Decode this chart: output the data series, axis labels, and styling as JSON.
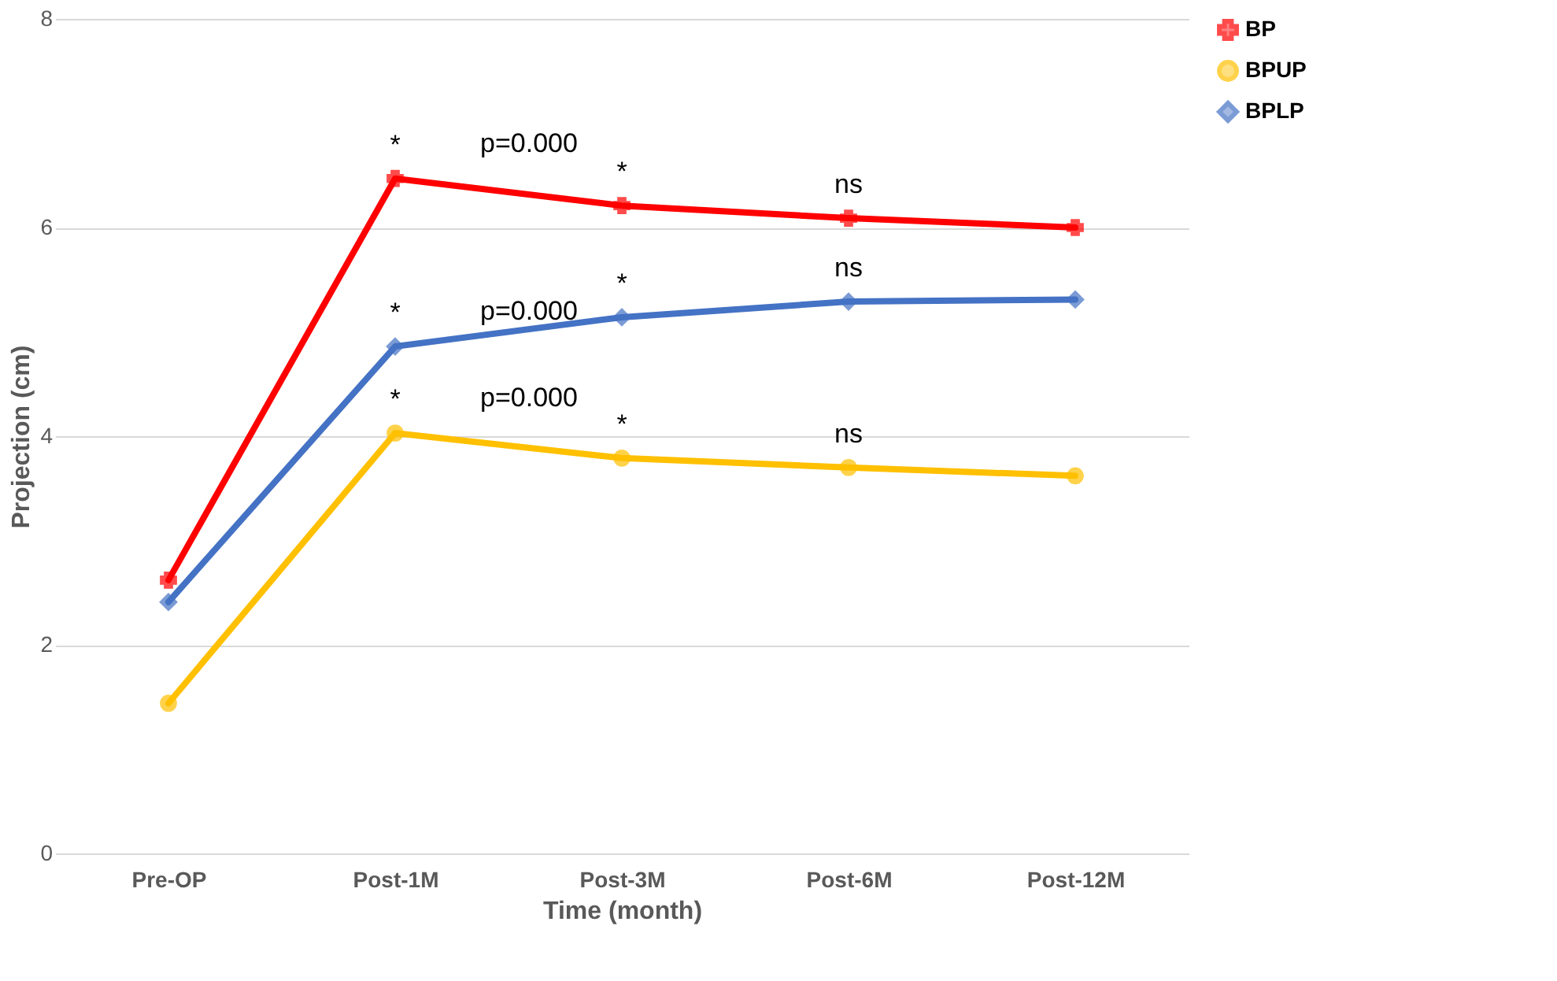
{
  "chart_data": {
    "type": "line",
    "xlabel": "Time (month)",
    "ylabel": "Projection (cm)",
    "categories": [
      "Pre-OP",
      "Post-1M",
      "Post-3M",
      "Post-6M",
      "Post-12M"
    ],
    "series": [
      {
        "name": "BP",
        "color": "#ff0000",
        "marker": "cross",
        "values": [
          2.62,
          6.47,
          6.21,
          6.09,
          6.0
        ]
      },
      {
        "name": "BPUP",
        "color": "#ffc000",
        "marker": "circle",
        "values": [
          1.44,
          4.03,
          3.79,
          3.7,
          3.62
        ]
      },
      {
        "name": "BPLP",
        "color": "#4472c4",
        "marker": "diamond",
        "values": [
          2.41,
          4.86,
          5.14,
          5.29,
          5.31
        ]
      }
    ],
    "ylim": [
      0,
      8
    ],
    "yticks": [
      0,
      2,
      4,
      6,
      8
    ],
    "grid": "y",
    "legend": "right",
    "line_style": "solid",
    "annotations": [
      {
        "text": "*",
        "x": "Post-1M",
        "y": 6.47
      },
      "p=0.000",
      {
        "text": "*",
        "x": "Post-3M",
        "y": 6.21
      },
      {
        "text": "ns",
        "x": "Post-6M",
        "y": 6.09
      },
      {
        "text": "*",
        "x": "Post-1M",
        "y": 4.86
      },
      "p=0.000",
      {
        "text": "*",
        "x": "Post-3M",
        "y": 5.14
      },
      {
        "text": "ns",
        "x": "Post-6M",
        "y": 5.29
      },
      {
        "text": "*",
        "x": "Post-1M",
        "y": 4.03
      },
      "p=0.000",
      {
        "text": "*",
        "x": "Post-3M",
        "y": 3.79
      },
      {
        "text": "ns",
        "x": "Post-6M",
        "y": 3.7
      }
    ]
  }
}
